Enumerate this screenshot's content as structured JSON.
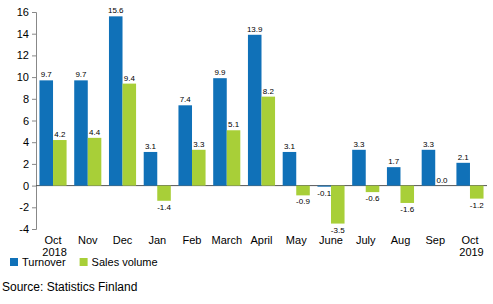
{
  "chart_data": {
    "type": "bar",
    "categories": [
      "Oct 2018",
      "Nov",
      "Dec",
      "Jan",
      "Feb",
      "March",
      "April",
      "May",
      "June",
      "July",
      "Aug",
      "Sep",
      "Oct 2019"
    ],
    "series": [
      {
        "name": "Turnover",
        "color": "#1071b8",
        "values": [
          9.7,
          9.7,
          15.6,
          3.1,
          7.4,
          9.9,
          13.9,
          3.1,
          -0.1,
          3.3,
          1.7,
          3.3,
          2.1
        ],
        "value_labels": [
          "9.7",
          "9.7",
          "15.6",
          "3.1",
          "7.4",
          "9.9",
          "13.9",
          "3.1",
          "-0.1",
          "3.3",
          "1.7",
          "3.3",
          "2.1"
        ]
      },
      {
        "name": "Sales volume",
        "color": "#a8cf38",
        "values": [
          4.2,
          4.4,
          9.4,
          -1.4,
          3.3,
          5.1,
          8.2,
          -0.9,
          -3.5,
          -0.6,
          -1.6,
          0.0,
          -1.2
        ],
        "value_labels": [
          "4.2",
          "4.4",
          "9.4",
          "-1.4",
          "3.3",
          "5.1",
          "8.2",
          "-0.9",
          "-3.5",
          "-0.6",
          "-1.6",
          "0.0",
          "-1.2"
        ]
      }
    ],
    "ylim": [
      -4,
      16
    ],
    "yticks": [
      -4,
      -2,
      0,
      2,
      4,
      6,
      8,
      10,
      12,
      14,
      16
    ],
    "grid": false,
    "data_labels": true,
    "legend": "bottom-left",
    "annotations": [
      "Source: Statistics Finland"
    ]
  }
}
